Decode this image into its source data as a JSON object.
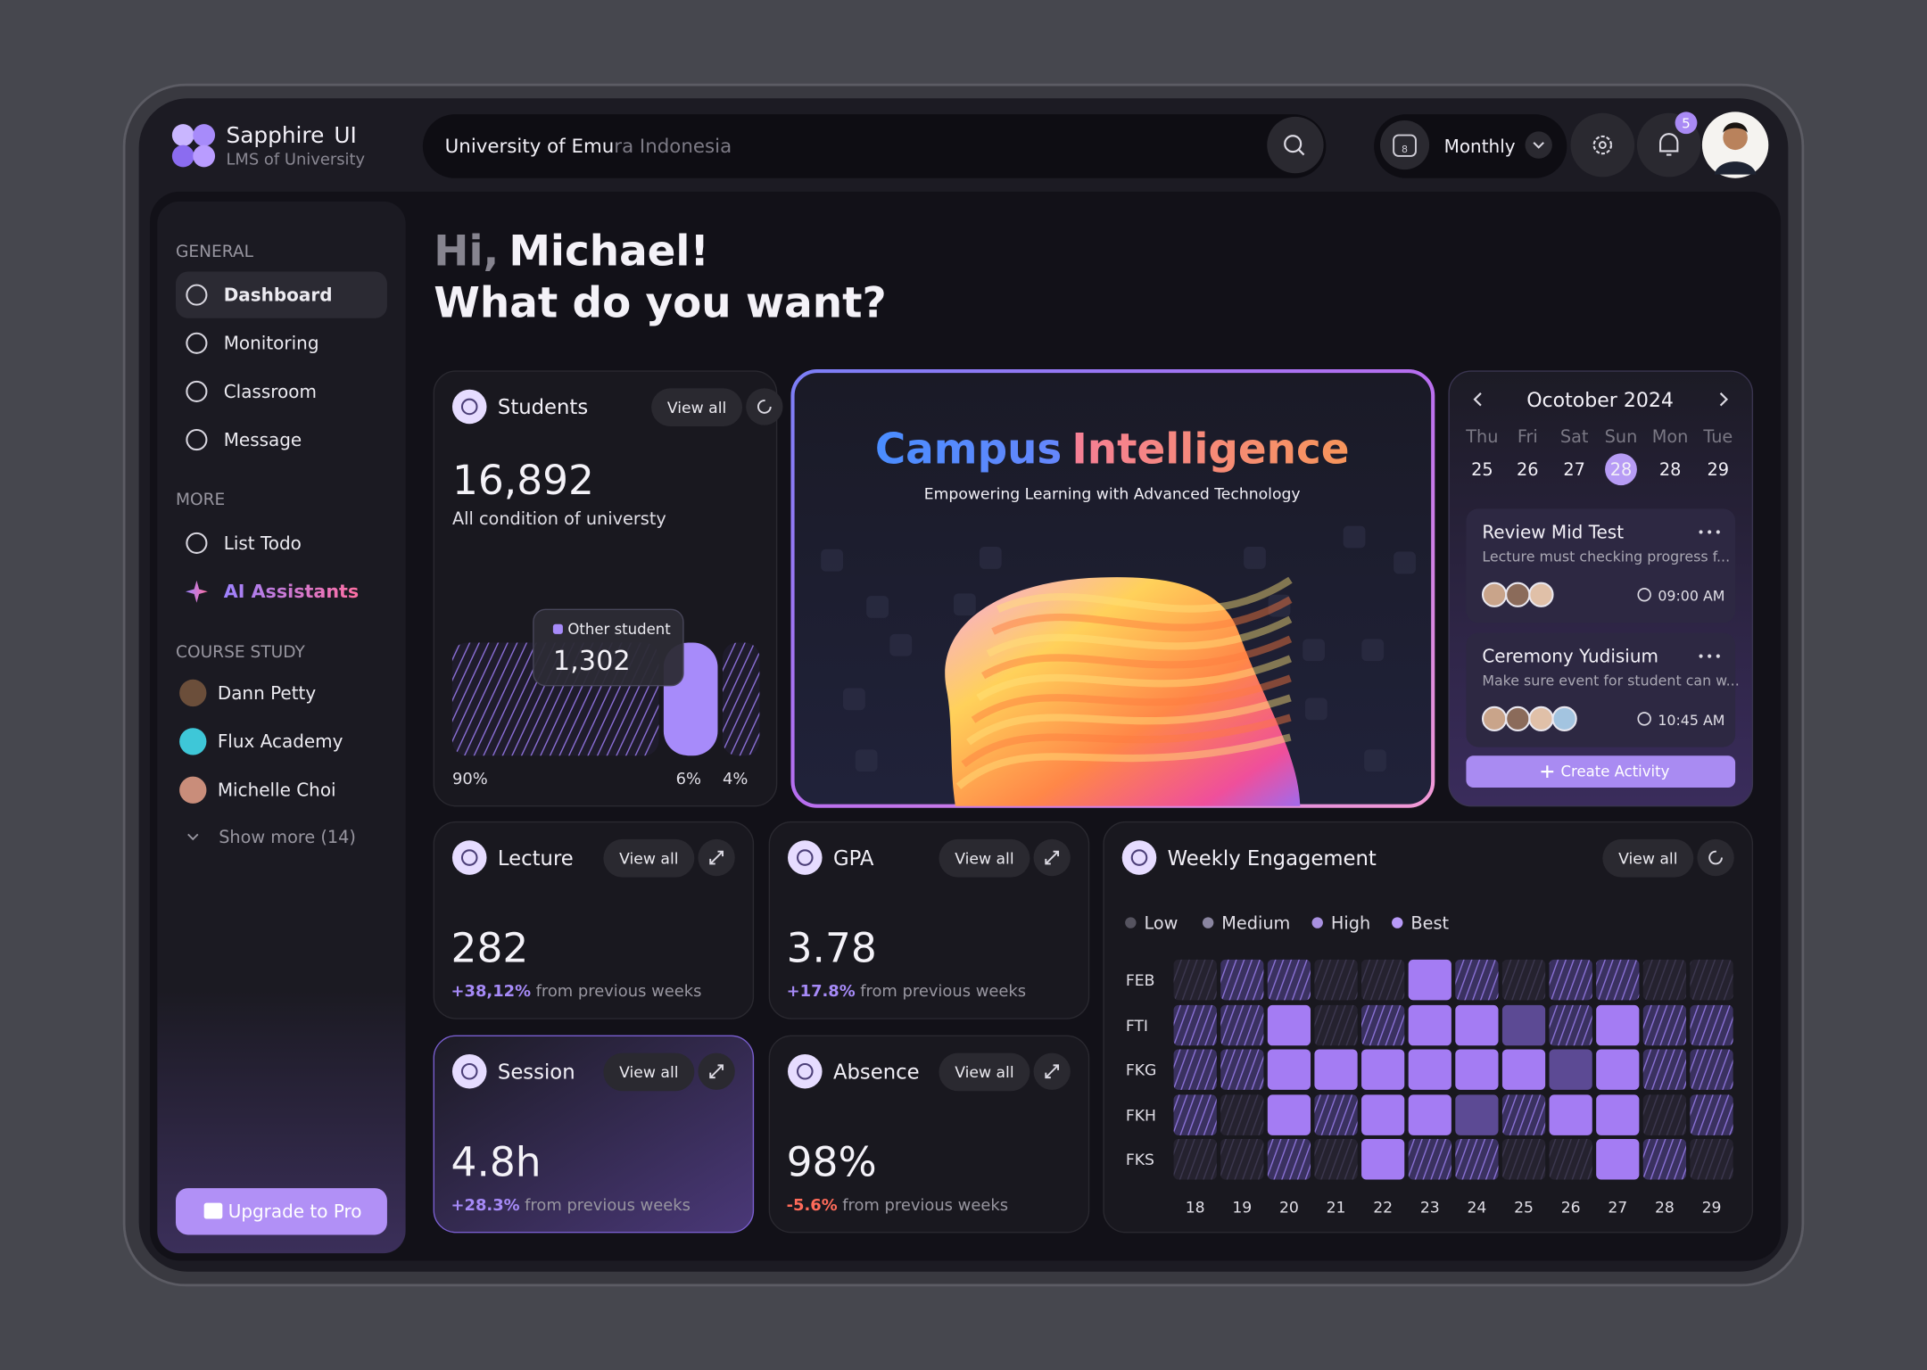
{
  "brand": {
    "name": "Sapphire",
    "suffix": "UI",
    "subtitle": "LMS of University"
  },
  "search": {
    "typed": "University of Emu",
    "placeholder": "ra Indonesia"
  },
  "period": {
    "icon_day": "8",
    "label": "Monthly"
  },
  "notification_badge": "5",
  "sidebar": {
    "sections": [
      {
        "title": "GENERAL",
        "items": [
          "Dashboard",
          "Monitoring",
          "Classroom",
          "Message"
        ]
      },
      {
        "title": "MORE",
        "items": [
          "List Todo",
          "AI Assistants"
        ]
      },
      {
        "title": "COURSE STUDY",
        "items": [
          "Dann Petty",
          "Flux Academy",
          "Michelle Choi"
        ]
      }
    ],
    "show_more": "Show more (14)",
    "upgrade": "Upgrade to Pro"
  },
  "greeting": {
    "hi": "Hi,",
    "name": "Michael!",
    "question": "What do you want?"
  },
  "students": {
    "title": "Students",
    "view_all": "View all",
    "value": "16,892",
    "caption": "All condition of universty",
    "tooltip": {
      "label": "Other student",
      "value": "1,302"
    },
    "segment_labels": [
      "90%",
      "6%",
      "4%"
    ]
  },
  "hero": {
    "title_1": "Campus",
    "title_2": "Intelligence",
    "subtitle": "Empowering Learning with Advanced Technology"
  },
  "calendar": {
    "month": "Ocotober 2024",
    "weekdays": [
      "Thu",
      "Fri",
      "Sat",
      "Sun",
      "Mon",
      "Tue"
    ],
    "dates": [
      "25",
      "26",
      "27",
      "28",
      "28",
      "29"
    ],
    "events": [
      {
        "title": "Review Mid Test",
        "description": "Lecture must checking progress f...",
        "time": "09:00 AM"
      },
      {
        "title": "Ceremony Yudisium",
        "description": "Make sure event for student can w...",
        "time": "10:45 AM"
      }
    ],
    "create": "Create Activity"
  },
  "stats": [
    {
      "title": "Lecture",
      "view_all": "View all",
      "value": "282",
      "change": "+38,12%",
      "note": "from previous weeks"
    },
    {
      "title": "GPA",
      "view_all": "View all",
      "value": "3.78",
      "change": "+17.8%",
      "note": "from previous weeks"
    },
    {
      "title": "Session",
      "view_all": "View all",
      "value": "4.8h",
      "change": "+28.3%",
      "note": "from previous weeks"
    },
    {
      "title": "Absence",
      "view_all": "View all",
      "value": "98%",
      "change": "-5.6%",
      "note": "from previous weeks"
    }
  ],
  "engagement": {
    "title": "Weekly Engagement",
    "view_all": "View all",
    "legend": [
      "Low",
      "Medium",
      "High",
      "Best"
    ],
    "rows": [
      "FEB",
      "FTI",
      "FKG",
      "FKH",
      "FKS"
    ],
    "columns": [
      "18",
      "19",
      "20",
      "21",
      "22",
      "23",
      "24",
      "25",
      "26",
      "27",
      "28",
      "29"
    ],
    "cells": [
      [
        0,
        1,
        1,
        0,
        0,
        3,
        1,
        0,
        1,
        1,
        0,
        0
      ],
      [
        1,
        1,
        3,
        0,
        1,
        3,
        3,
        2,
        1,
        3,
        1,
        1
      ],
      [
        1,
        1,
        3,
        3,
        3,
        3,
        3,
        3,
        2,
        3,
        1,
        1
      ],
      [
        1,
        0,
        3,
        1,
        3,
        3,
        2,
        1,
        3,
        3,
        0,
        1
      ],
      [
        0,
        0,
        1,
        0,
        3,
        1,
        1,
        0,
        0,
        3,
        1,
        0
      ]
    ]
  }
}
